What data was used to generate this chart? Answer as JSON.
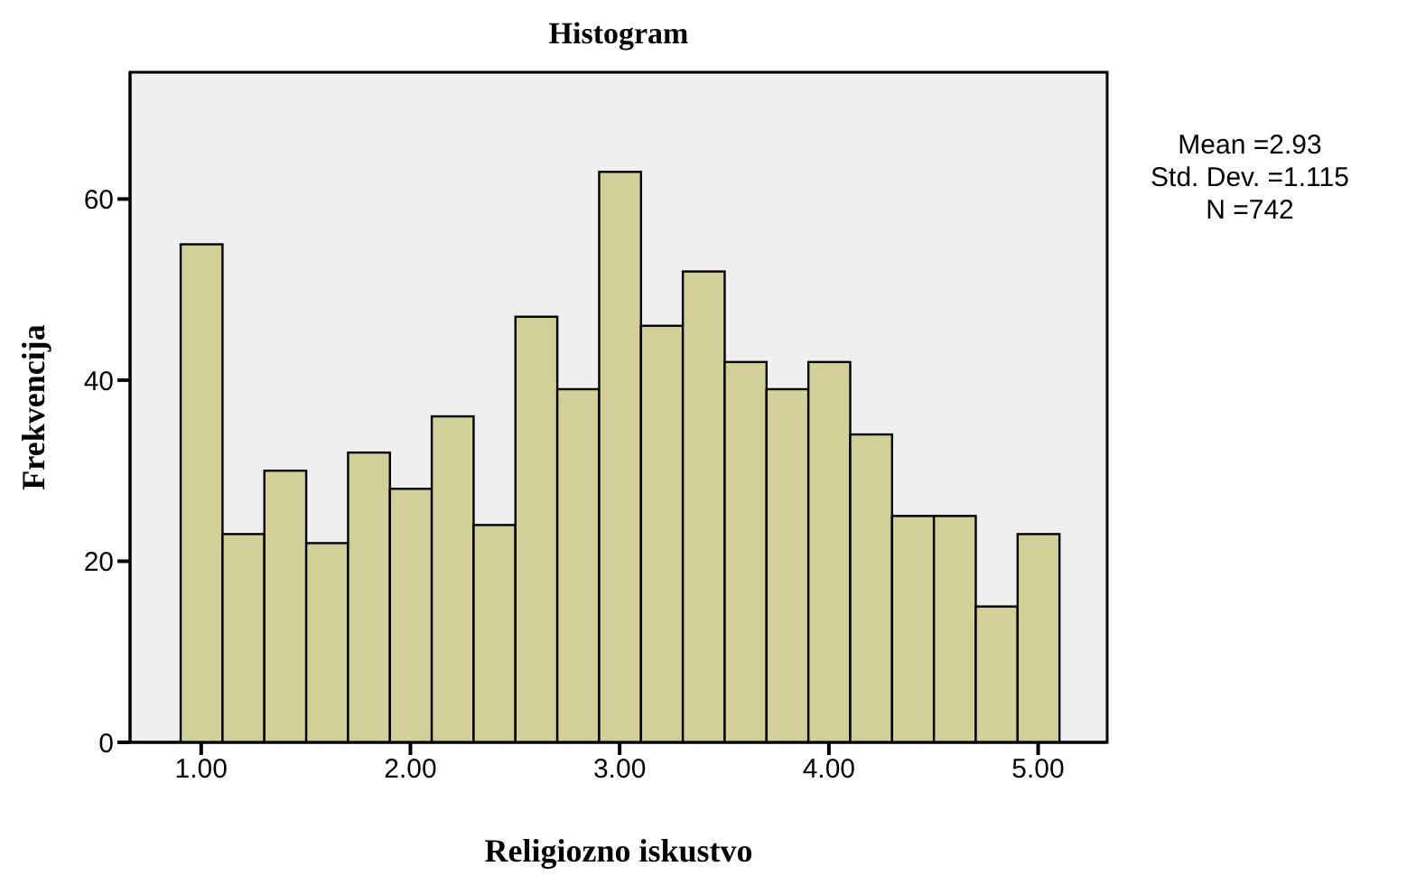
{
  "chart_data": {
    "type": "histogram",
    "title": "Histogram",
    "xlabel": "Religiozno iskustvo",
    "ylabel": "Frekvencija",
    "bins": [
      0.9,
      1.1,
      1.3,
      1.5,
      1.7,
      1.9,
      2.1,
      2.3,
      2.5,
      2.7,
      2.9,
      3.1,
      3.3,
      3.5,
      3.7,
      3.9,
      4.1,
      4.3,
      4.5,
      4.7,
      4.9,
      5.1
    ],
    "values": [
      55,
      23,
      30,
      22,
      32,
      28,
      36,
      24,
      47,
      39,
      63,
      46,
      52,
      42,
      39,
      42,
      34,
      25,
      25,
      15,
      23
    ],
    "color": "#d3cf98",
    "xlim": [
      0.66,
      5.33
    ],
    "xticks": [
      {
        "value": 1,
        "label": "1.00"
      },
      {
        "value": 2,
        "label": "2.00"
      },
      {
        "value": 3,
        "label": "3.00"
      },
      {
        "value": 4,
        "label": "4.00"
      },
      {
        "value": 5,
        "label": "5.00"
      }
    ],
    "ylim": [
      0,
      74
    ],
    "yticks": [
      0,
      20,
      40,
      60
    ],
    "annotations": [
      "Mean =2.93",
      "Std. Dev. =1.115",
      "N =742"
    ]
  }
}
